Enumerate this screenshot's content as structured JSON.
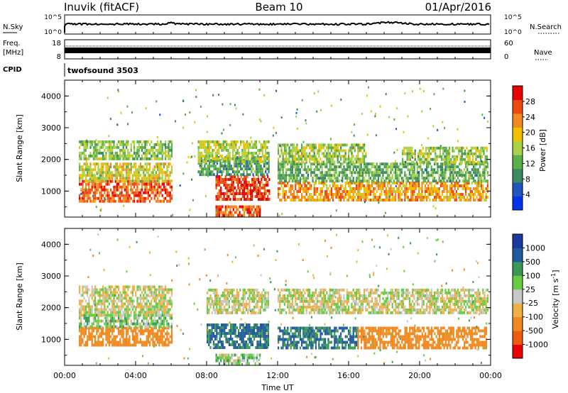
{
  "header": {
    "station": "Inuvik (fitACF)",
    "beam": "Beam 10",
    "date": "01/Apr/2016"
  },
  "top_panels": {
    "nsky_label": "N.Sky",
    "nsky_ticks": [
      "10^5",
      "10^0"
    ],
    "nsearch_label": "N.Search",
    "nsearch_ticks": [
      "10^5",
      "10^0"
    ],
    "freq_label": "Freq.",
    "freq_unit": "[MHz]",
    "freq_ticks": [
      "18",
      "8"
    ],
    "nave_label": "Nave",
    "nave_ticks": [
      "60",
      "0"
    ],
    "cpid_label": "CPID",
    "cpid_value": "twofsound 3503"
  },
  "colors": {
    "power_scale": [
      "#0033ee",
      "#2255bb",
      "#3c8a60",
      "#5cb04a",
      "#a8d24a",
      "#f0c000",
      "#f08a20",
      "#ee4a10",
      "#e80000"
    ],
    "velocity_scale": [
      "#ee0000",
      "#ee5a10",
      "#f08a20",
      "#f0b048",
      "#c8c8c8",
      "#66cc44",
      "#3a9a55",
      "#225aa0",
      "#1a3aa0"
    ]
  },
  "chart_data": [
    {
      "type": "heatmap",
      "panel": "power",
      "ylabel": "Slant Range [km]",
      "yticks": [
        1000,
        2000,
        3000,
        4000
      ],
      "ylim": [
        180,
        4500
      ],
      "xlim": [
        0,
        24
      ],
      "colorbar": {
        "label": "Power [dB]",
        "ticks": [
          "4",
          "8",
          "12",
          "16",
          "20",
          "24",
          "28"
        ],
        "range": [
          0,
          32
        ]
      },
      "bands": [
        {
          "range_km": [
            700,
            1350
          ],
          "time_h": [
            0.8,
            6.0
          ],
          "value": 26
        },
        {
          "range_km": [
            1350,
            1900
          ],
          "time_h": [
            0.8,
            6.0
          ],
          "value": 18
        },
        {
          "range_km": [
            2000,
            2600
          ],
          "time_h": [
            0.8,
            6.0
          ],
          "value": 14
        },
        {
          "range_km": [
            700,
            1500
          ],
          "time_h": [
            8.5,
            11.5
          ],
          "value": 28
        },
        {
          "range_km": [
            250,
            550
          ],
          "time_h": [
            8.5,
            11.0
          ],
          "value": 26
        },
        {
          "range_km": [
            1500,
            2100
          ],
          "time_h": [
            7.5,
            11.5
          ],
          "value": 10
        },
        {
          "range_km": [
            1900,
            2600
          ],
          "time_h": [
            7.5,
            11.5
          ],
          "value": 16
        },
        {
          "range_km": [
            700,
            1300
          ],
          "time_h": [
            12.0,
            23.8
          ],
          "value": 22
        },
        {
          "range_km": [
            1300,
            1900
          ],
          "time_h": [
            12.0,
            23.8
          ],
          "value": 12
        },
        {
          "range_km": [
            1900,
            2500
          ],
          "time_h": [
            12.0,
            17.0
          ],
          "value": 15
        },
        {
          "range_km": [
            1900,
            2400
          ],
          "time_h": [
            19.0,
            23.8
          ],
          "value": 15
        }
      ]
    },
    {
      "type": "heatmap",
      "panel": "velocity",
      "ylabel": "Slant Range [km]",
      "xlabel": "Time UT",
      "xticks": [
        "00:00",
        "04:00",
        "08:00",
        "12:00",
        "16:00",
        "20:00",
        "00:00"
      ],
      "yticks": [
        1000,
        2000,
        3000,
        4000
      ],
      "ylim": [
        180,
        4500
      ],
      "xlim": [
        0,
        24
      ],
      "colorbar": {
        "label": "Velocity [m s^-1]",
        "ticks": [
          "1000",
          "500",
          "100",
          "25",
          "-25",
          "-100",
          "-500",
          "-1000"
        ]
      },
      "bands": [
        {
          "range_km": [
            800,
            1400
          ],
          "time_h": [
            0.8,
            6.0
          ],
          "value": -250
        },
        {
          "range_km": [
            1400,
            1800
          ],
          "time_h": [
            0.8,
            6.0
          ],
          "value": 60
        },
        {
          "range_km": [
            1800,
            2700
          ],
          "time_h": [
            0.8,
            6.0
          ],
          "value": 0
        },
        {
          "range_km": [
            700,
            1500
          ],
          "time_h": [
            8.0,
            11.5
          ],
          "value": 600
        },
        {
          "range_km": [
            250,
            550
          ],
          "time_h": [
            8.5,
            11.0
          ],
          "value": 60
        },
        {
          "range_km": [
            1800,
            2600
          ],
          "time_h": [
            8.0,
            11.5
          ],
          "value": 0
        },
        {
          "range_km": [
            700,
            1400
          ],
          "time_h": [
            12.0,
            16.5
          ],
          "value": 500
        },
        {
          "range_km": [
            700,
            1400
          ],
          "time_h": [
            16.5,
            23.8
          ],
          "value": -300
        },
        {
          "range_km": [
            1800,
            2600
          ],
          "time_h": [
            12.0,
            23.8
          ],
          "value": 0
        }
      ]
    }
  ]
}
